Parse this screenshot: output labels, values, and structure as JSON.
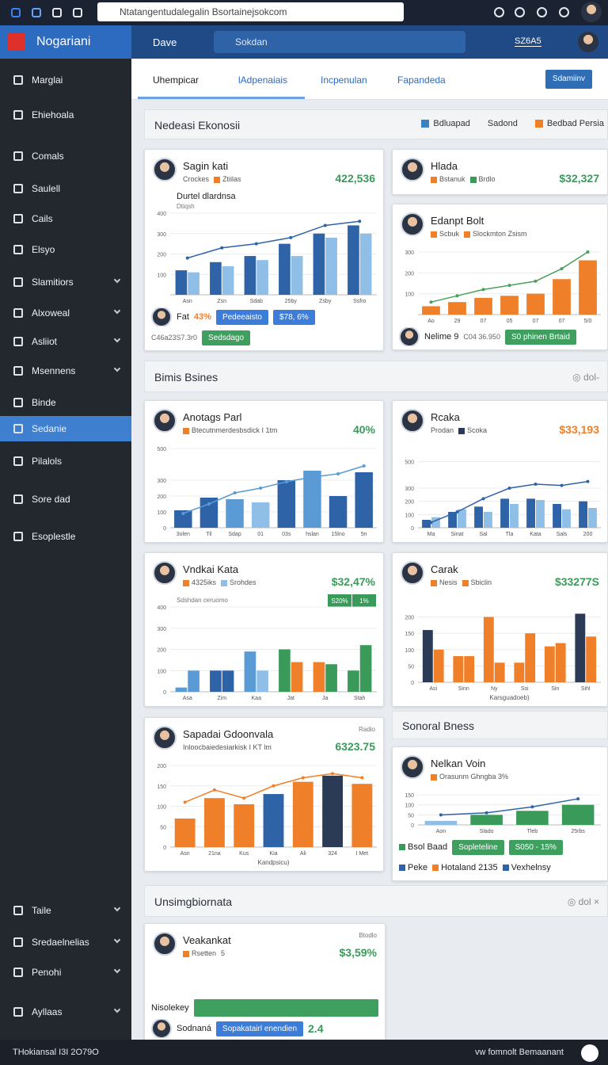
{
  "browser": {
    "url": "Ntatangentudalegalin Bsortainejsokcom"
  },
  "header": {
    "brand": "Nogariani",
    "user": "Dave",
    "search": "Sokdan",
    "status": "SZ6A5"
  },
  "sidebar": {
    "items": [
      {
        "label": "Marglai"
      },
      {
        "label": "Ehiehoala"
      },
      {
        "label": "Comals"
      },
      {
        "label": "Saulell"
      },
      {
        "label": "Cails"
      },
      {
        "label": "Elsyo"
      },
      {
        "label": "Slamitiors",
        "expandable": true
      },
      {
        "label": "Alxoweal",
        "expandable": true
      },
      {
        "label": "Asliiot",
        "expandable": true
      },
      {
        "label": "Msennens",
        "expandable": true
      },
      {
        "label": "Binde"
      },
      {
        "label": "Sedanie",
        "active": true
      },
      {
        "label": "Pilalols"
      },
      {
        "label": "Sore dad"
      },
      {
        "label": "Esoplestle"
      }
    ],
    "bottom_items": [
      {
        "label": "Taile",
        "expandable": true
      },
      {
        "label": "Sredaelnelias",
        "expandable": true
      },
      {
        "label": "Penohi",
        "expandable": true
      },
      {
        "label": "Ayllaas",
        "expandable": true
      }
    ]
  },
  "tabs": {
    "items": [
      "Uhempicar",
      "lAdpenaiais",
      "Incpenulan",
      "Fapandeda"
    ],
    "active": 1,
    "button": "Sdamiinv"
  },
  "sections": [
    {
      "title": "Nedeasi Ekonosii",
      "legend": [
        {
          "name": "Bdluapad",
          "color": "#3b82c4"
        },
        {
          "name": "Sadond"
        },
        {
          "name": "Bedbad Persia",
          "color": "#f07f2a"
        }
      ]
    },
    {
      "title": "Bimis Bsines",
      "action": "◎ dol-"
    },
    {
      "title": "Sonoral Bness"
    },
    {
      "title": "Unsimgbiornata",
      "action": "◎ dol ×"
    }
  ],
  "cards": [
    {
      "title": "Sagin kati",
      "tags": [
        {
          "text": "Crockes"
        },
        {
          "text": "Ztiilas",
          "color": "#f07f2a"
        }
      ],
      "value": "422,536",
      "value_color": "#3a9a5a",
      "chart": {
        "title": "Durtel dlardnsa",
        "subtitle": "Dtiqsh",
        "categories": [
          "Asn",
          "Zsn",
          "Sdab",
          "25by",
          "Zsby",
          "Ssfro"
        ],
        "ylim": [
          0,
          400
        ],
        "yticks": [
          100,
          200,
          300,
          400
        ],
        "series": [
          {
            "type": "bar",
            "color": "#2f63a8",
            "values": [
              120,
              160,
              190,
              250,
              300,
              340
            ]
          },
          {
            "type": "bar",
            "color": "#8fbfe6",
            "values": [
              110,
              140,
              170,
              190,
              280,
              300
            ]
          },
          {
            "type": "line",
            "color": "#2f63a8",
            "values": [
              180,
              230,
              250,
              280,
              340,
              360
            ]
          }
        ]
      },
      "rows": [
        {
          "avatar": true,
          "items": [
            {
              "text": "Fat"
            },
            {
              "text": "43%",
              "style": "accent"
            },
            {
              "text": "Pedeeaisto",
              "style": "blue"
            },
            {
              "text": "$78, 6%",
              "style": "blue"
            }
          ]
        },
        {
          "items": [
            {
              "text": "C46a23S7.3r0",
              "style": "note"
            },
            {
              "text": "Sedsdago",
              "style": "green"
            }
          ]
        }
      ]
    },
    {
      "title": "Hlada",
      "tags": [
        {
          "text": "Bstanuk",
          "color": "#f07f2a"
        },
        {
          "text": "Brdlo",
          "color": "#3a9a5a"
        }
      ],
      "value": "$32,327",
      "value_color": "#3a9a5a"
    },
    {
      "title": "Edanpt Bolt",
      "tags": [
        {
          "text": "Scbuk",
          "color": "#f07f2a"
        },
        {
          "text": "Slockmton Zsism",
          "color": "#f07f2a"
        }
      ],
      "chart": {
        "categories": [
          "Ao",
          "29",
          "07",
          "05",
          "07",
          "07",
          "5/0"
        ],
        "ylim": [
          0,
          300
        ],
        "yticks": [
          100,
          200,
          300
        ],
        "series": [
          {
            "type": "bar",
            "color": "#f07f2a",
            "values": [
              40,
              60,
              80,
              90,
              100,
              170,
              260
            ]
          },
          {
            "type": "line",
            "color": "#4aa05a",
            "values": [
              60,
              90,
              120,
              140,
              160,
              220,
              300
            ]
          }
        ]
      },
      "rows": [
        {
          "avatar": true,
          "items": [
            {
              "text": "Nelime 9"
            },
            {
              "text": "C04 36.950",
              "style": "note"
            },
            {
              "text": "S0 phinen Brtaid",
              "style": "green"
            }
          ]
        }
      ]
    },
    {
      "title": "Anotags Parl",
      "tags": [
        {
          "text": "Btecutnmerdesbsdick I 1tm",
          "color": "#f07f2a"
        }
      ],
      "value": "40%",
      "value_color": "#3a9a5a",
      "chart": {
        "categories": [
          "3olen",
          "Til",
          "Sdap",
          "01",
          "03s",
          "hslan",
          "15lno",
          "5n"
        ],
        "ylim": [
          0,
          500
        ],
        "yticks": [
          0,
          100,
          200,
          300,
          500
        ],
        "series": [
          {
            "type": "bar",
            "color": "#2f63a8",
            "colors": [
              "#2f63a8",
              "#2f63a8",
              "#5b9bd5",
              "#8fbfe6",
              "#2f63a8",
              "#5b9bd5",
              "#2f63a8",
              "#2f63a8"
            ],
            "values": [
              110,
              190,
              180,
              160,
              300,
              360,
              200,
              350
            ]
          },
          {
            "type": "line",
            "color": "#5b9bd5",
            "values": [
              90,
              150,
              220,
              250,
              290,
              320,
              340,
              390
            ]
          }
        ]
      }
    },
    {
      "title": "Rcaka",
      "tags": [
        {
          "text": "Prodan"
        },
        {
          "text": "Scoka",
          "color": "#2b3a55"
        }
      ],
      "value": "$33,193",
      "value_color": "#f07f2a",
      "chart": {
        "categories": [
          "Ma",
          "Sinat",
          "Sal",
          "Tla",
          "Kata",
          "Sals",
          "200"
        ],
        "ylim": [
          0,
          600
        ],
        "yticks": [
          0,
          100,
          200,
          300,
          500
        ],
        "series": [
          {
            "type": "bar",
            "color": "#2f63a8",
            "values": [
              60,
              120,
              160,
              220,
              220,
              180,
              200
            ]
          },
          {
            "type": "bar",
            "color": "#8fbfe6",
            "values": [
              80,
              140,
              120,
              180,
              210,
              140,
              150
            ]
          },
          {
            "type": "line",
            "color": "#2f63a8",
            "values": [
              40,
              120,
              220,
              300,
              330,
              320,
              350
            ]
          }
        ]
      }
    },
    {
      "title": "Vndkai Kata",
      "tags": [
        {
          "text": "4325iks",
          "color": "#f07f2a"
        },
        {
          "text": "Srohdes",
          "color": "#8fbfe6"
        }
      ],
      "value": "$32,47%",
      "value_color": "#3a9a5a",
      "chart": {
        "subtitle": "Sdshdan ceruomo",
        "badges": [
          "S20%",
          "1%"
        ],
        "categories": [
          "Asa",
          "Zim",
          "Kaa",
          "Jat",
          "Ja",
          "Stah"
        ],
        "ylim": [
          0,
          400
        ],
        "yticks": [
          0,
          100,
          200,
          300,
          400
        ],
        "series": [
          {
            "type": "bar",
            "color": "#5b9bd5",
            "colors": [
              "#5b9bd5",
              "#2f63a8",
              "#5b9bd5",
              "#3a9a5a",
              "#f07f2a",
              "#3a9a5a"
            ],
            "values": [
              20,
              100,
              190,
              200,
              140,
              100
            ]
          },
          {
            "type": "bar",
            "color": "#3a9a5a",
            "colors": [
              "#5b9bd5",
              "#2f63a8",
              "#8fbfe6",
              "#f07f2a",
              "#3a9a5a",
              "#3a9a5a"
            ],
            "values": [
              100,
              100,
              100,
              140,
              130,
              220
            ]
          }
        ]
      }
    },
    {
      "title": "Carak",
      "tags": [
        {
          "text": "Nesis",
          "color": "#f07f2a"
        },
        {
          "text": "Sbiclin",
          "color": "#f07f2a"
        }
      ],
      "value": "$33277S",
      "value_color": "#3a9a5a",
      "chart": {
        "x_label": "Karsguadoeb)",
        "categories": [
          "Asi",
          "Sinn",
          "Ny",
          "Ssi",
          "Sin",
          "Sihl"
        ],
        "ylim": [
          0,
          250
        ],
        "yticks": [
          0,
          50,
          100,
          150,
          200
        ],
        "series": [
          {
            "type": "bar",
            "color": "#2b3a55",
            "colors": [
              "#2b3a55",
              "#f07f2a",
              "#f07f2a",
              "#f07f2a",
              "#f07f2a",
              "#2b3a55"
            ],
            "values": [
              160,
              80,
              200,
              60,
              110,
              210
            ]
          },
          {
            "type": "bar",
            "color": "#f07f2a",
            "values": [
              100,
              80,
              60,
              150,
              120,
              140
            ]
          }
        ]
      }
    },
    {
      "title": "Sapadai Gdoonvala",
      "corner": "Radio",
      "tags": [
        {
          "text": "Inloocbaiedesiarkisk I KT lm"
        }
      ],
      "value": "6323.75",
      "value_color": "#3a9a5a",
      "chart": {
        "x_label": "Kandpsicu)",
        "categories": [
          "Asn",
          "21na",
          "Kus",
          "Kia",
          "Ali",
          "324",
          "I Met"
        ],
        "ylim": [
          0,
          200
        ],
        "yticks": [
          0,
          50,
          100,
          150,
          200
        ],
        "series": [
          {
            "type": "bar",
            "color": "#f07f2a",
            "colors": [
              "#f07f2a",
              "#f07f2a",
              "#f07f2a",
              "#2f63a8",
              "#f07f2a",
              "#2b3a55",
              "#f07f2a"
            ],
            "values": [
              70,
              120,
              105,
              130,
              160,
              175,
              155
            ]
          },
          {
            "type": "line",
            "color": "#f07f2a",
            "values": [
              110,
              140,
              120,
              150,
              170,
              180,
              170
            ]
          }
        ]
      }
    },
    {
      "title": "Nelkan Voin",
      "tags": [
        {
          "text": "Orasunm Ghngba 3%",
          "color": "#f07f2a"
        }
      ],
      "chart": {
        "categories": [
          "Aon",
          "Slado",
          "Tleb",
          "25rbs"
        ],
        "ylim": [
          0,
          150
        ],
        "yticks": [
          0,
          50,
          100,
          150
        ],
        "series": [
          {
            "type": "bar",
            "color": "#3a9a5a",
            "colors": [
              "#8fbfe6",
              "#3a9a5a",
              "#3a9a5a",
              "#3a9a5a"
            ],
            "values": [
              20,
              50,
              70,
              100
            ]
          },
          {
            "type": "line",
            "color": "#2f63a8",
            "values": [
              50,
              60,
              90,
              130
            ]
          }
        ]
      },
      "rows": [
        {
          "items": [
            {
              "text": "Bsol Baad",
              "style": "key",
              "color": "#3a9a5a"
            },
            {
              "text": "Sopleteline",
              "style": "green"
            },
            {
              "text": "S050 - 15%",
              "style": "green"
            }
          ]
        },
        {
          "items": [
            {
              "text": "Peke",
              "style": "key",
              "color": "#2f63a8"
            },
            {
              "text": "Hotaland 2135",
              "style": "key",
              "color": "#f07f2a"
            },
            {
              "text": "Vexhelnsy",
              "style": "key",
              "color": "#2f63a8"
            }
          ]
        }
      ]
    },
    {
      "title": "Veakankat",
      "corner": "Btodlo",
      "tags": [
        {
          "text": "Rsetten",
          "color": "#f07f2a"
        },
        {
          "text": "5"
        }
      ],
      "value": "$3,59%",
      "value_color": "#3a9a5a",
      "rows": [
        {
          "select": true,
          "items": [
            {
              "text": "Nisolekey"
            }
          ]
        },
        {
          "avatar": true,
          "items": [
            {
              "text": "Sodnaná"
            },
            {
              "text": "Sopakatairl enendien",
              "style": "blue"
            },
            {
              "text": "2.4",
              "style": "accent-green"
            }
          ]
        }
      ]
    }
  ],
  "footer": {
    "left": "THokiansal I3I 2O79O",
    "right": "vw fomnolt Bemaanant"
  }
}
